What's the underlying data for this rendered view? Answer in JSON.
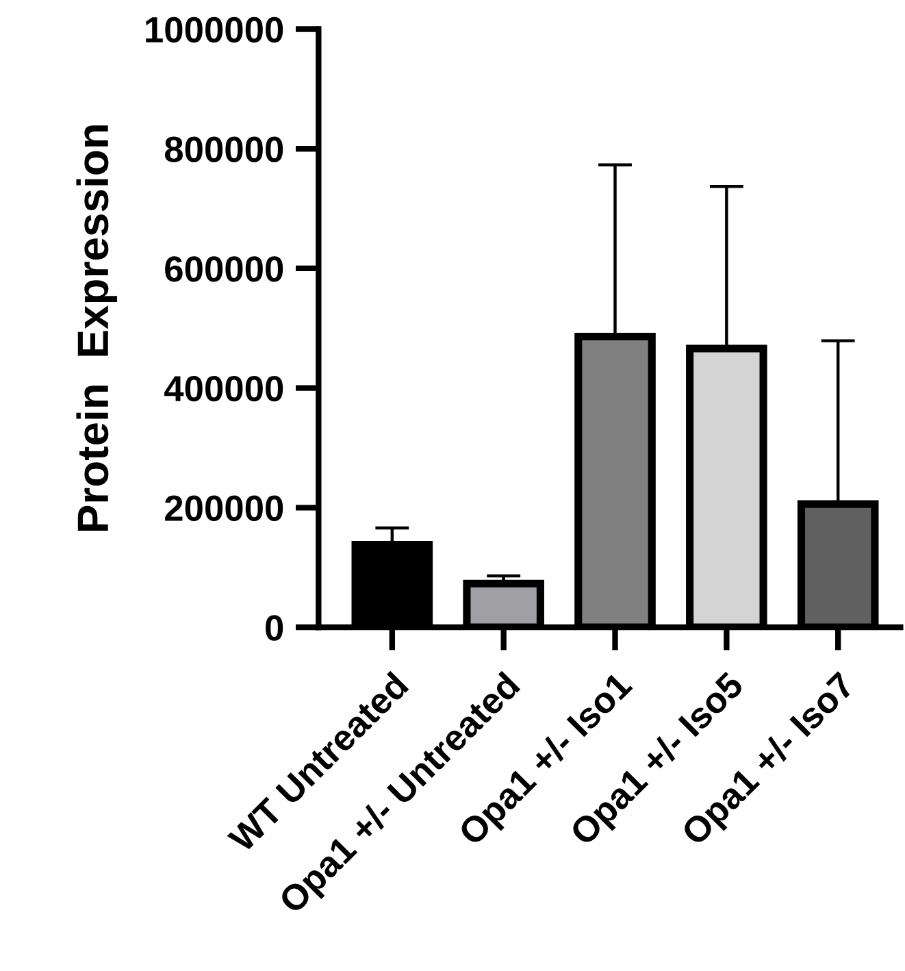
{
  "chart_data": {
    "type": "bar",
    "ylabel": "Protein  Expression",
    "categories": [
      "WT Untreated",
      "Opa1 +/- Untreated",
      "Opa1 +/- Iso1",
      "Opa1 +/- Iso5",
      "Opa1 +/- Iso7"
    ],
    "values": [
      138000,
      73000,
      486000,
      466000,
      206000
    ],
    "colors": [
      "#000000",
      "#a0a0a4",
      "#808080",
      "#d4d4d4",
      "#606060"
    ],
    "errors": [
      [
        138000,
        166000
      ],
      [
        73000,
        86000
      ],
      [
        486000,
        773000
      ],
      [
        466000,
        737000
      ],
      [
        206000,
        479000
      ]
    ],
    "ylim": [
      0,
      1000000
    ],
    "yticks": [
      0,
      200000,
      400000,
      600000,
      800000,
      1000000
    ],
    "grid": false,
    "legend": false
  }
}
